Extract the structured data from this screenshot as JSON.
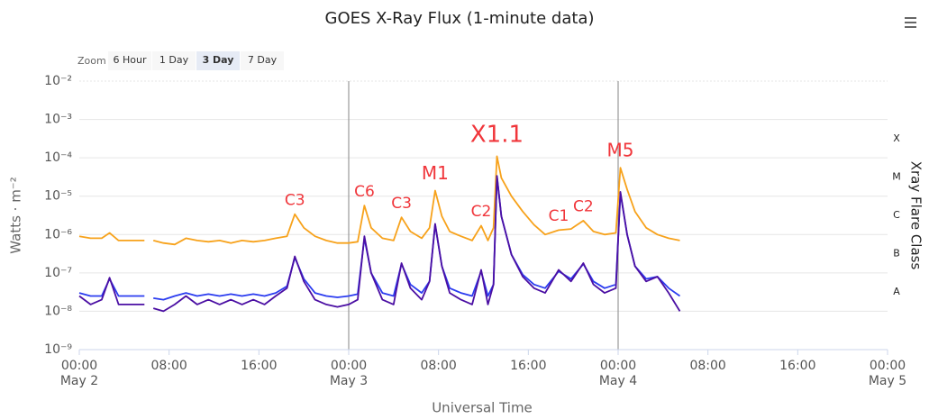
{
  "chart_data": {
    "type": "line",
    "title": "GOES X-Ray Flux (1-minute data)",
    "x_label": "Universal Time",
    "y_label": "Watts · m⁻²",
    "y2_label": "Xray Flare Class",
    "log_y": true,
    "grid": true,
    "range_selector": {
      "label": "Zoom",
      "buttons": [
        "6 Hour",
        "1 Day",
        "3 Day",
        "7 Day"
      ],
      "selected": 2
    },
    "xlim": [
      0,
      72
    ],
    "xticks": [
      {
        "value": 0,
        "label": "00:00",
        "date": "May 2"
      },
      {
        "value": 8,
        "label": "08:00"
      },
      {
        "value": 16,
        "label": "16:00"
      },
      {
        "value": 24,
        "label": "00:00",
        "date": "May 3"
      },
      {
        "value": 32,
        "label": "08:00"
      },
      {
        "value": 40,
        "label": "16:00"
      },
      {
        "value": 48,
        "label": "00:00",
        "date": "May 4"
      },
      {
        "value": 56,
        "label": "08:00"
      },
      {
        "value": 64,
        "label": "16:00"
      },
      {
        "value": 72,
        "label": "00:00",
        "date": "May 5"
      }
    ],
    "ylim": [
      1e-09,
      0.01
    ],
    "yticks": [
      {
        "value": 1e-09,
        "label": "10⁻⁹"
      },
      {
        "value": 1e-08,
        "label": "10⁻⁸"
      },
      {
        "value": 1e-07,
        "label": "10⁻⁷"
      },
      {
        "value": 1e-06,
        "label": "10⁻⁶"
      },
      {
        "value": 1e-05,
        "label": "10⁻⁵"
      },
      {
        "value": 0.0001,
        "label": "10⁻⁴"
      },
      {
        "value": 0.001,
        "label": "10⁻³"
      },
      {
        "value": 0.01,
        "label": "10⁻²"
      }
    ],
    "y2lim": [
      1e-09,
      0.01
    ],
    "y2ticks": [
      {
        "value": 3.16e-08,
        "label": "A"
      },
      {
        "value": 3.16e-07,
        "label": "B"
      },
      {
        "value": 3.16e-06,
        "label": "C"
      },
      {
        "value": 3.16e-05,
        "label": "M"
      },
      {
        "value": 0.000316,
        "label": "X"
      }
    ],
    "x": [
      0,
      1,
      2,
      2.7,
      3.5,
      4.5,
      5.8,
      6.2,
      6.6,
      7.5,
      8.5,
      9.5,
      10.5,
      11.5,
      12.5,
      13.5,
      14.5,
      15.5,
      16.5,
      17.5,
      18.5,
      19.2,
      20,
      21,
      22,
      23,
      24,
      24.8,
      25.4,
      26,
      27,
      28,
      28.7,
      29.5,
      30.5,
      31.2,
      31.7,
      32.3,
      33,
      34,
      35,
      35.8,
      36.4,
      36.9,
      37.2,
      37.6,
      38.5,
      39.5,
      40.5,
      41.5,
      42.7,
      43.8,
      44.9,
      45.8,
      46.8,
      47.8,
      48.2,
      48.8,
      49.5,
      50.5,
      51.5,
      52.5,
      53.5
    ],
    "series": [
      {
        "color": "#f7a21b",
        "values": [
          9e-07,
          8e-07,
          8e-07,
          1.1e-06,
          7e-07,
          7e-07,
          7e-07,
          null,
          7e-07,
          6e-07,
          5.5e-07,
          8e-07,
          7e-07,
          6.5e-07,
          7e-07,
          6e-07,
          7e-07,
          6.5e-07,
          7e-07,
          8e-07,
          9e-07,
          3.4e-06,
          1.5e-06,
          9e-07,
          7e-07,
          6e-07,
          6e-07,
          6.5e-07,
          5.7e-06,
          1.5e-06,
          8e-07,
          7e-07,
          2.8e-06,
          1.2e-06,
          8e-07,
          1.5e-06,
          1.4e-05,
          3e-06,
          1.2e-06,
          9e-07,
          7e-07,
          1.7e-06,
          7e-07,
          1.5e-06,
          0.00011,
          3e-05,
          1e-05,
          4e-06,
          1.8e-06,
          1e-06,
          1.3e-06,
          1.4e-06,
          2.3e-06,
          1.2e-06,
          1e-06,
          1.1e-06,
          5.5e-05,
          1.5e-05,
          4e-06,
          1.5e-06,
          1e-06,
          8e-07,
          7e-07
        ]
      },
      {
        "color": "#2b3cf0",
        "values": [
          3e-08,
          2.5e-08,
          2.5e-08,
          7e-08,
          2.5e-08,
          2.5e-08,
          2.5e-08,
          null,
          2.2e-08,
          2e-08,
          2.5e-08,
          3e-08,
          2.5e-08,
          2.8e-08,
          2.5e-08,
          2.8e-08,
          2.5e-08,
          2.8e-08,
          2.5e-08,
          3e-08,
          4.5e-08,
          2.5e-07,
          7e-08,
          3e-08,
          2.5e-08,
          2.3e-08,
          2.5e-08,
          2.8e-08,
          8e-07,
          1e-07,
          3e-08,
          2.5e-08,
          1.7e-07,
          5e-08,
          3e-08,
          6e-08,
          1.8e-06,
          1.5e-07,
          4e-08,
          3e-08,
          2.5e-08,
          1.1e-07,
          2.5e-08,
          5e-08,
          3.3e-05,
          3e-06,
          3e-07,
          9e-08,
          5e-08,
          4e-08,
          1.1e-07,
          7e-08,
          1.7e-07,
          6e-08,
          4e-08,
          5e-08,
          1.2e-05,
          1e-06,
          1.5e-07,
          7e-08,
          8e-08,
          4e-08,
          2.5e-08
        ]
      },
      {
        "color": "#4b0fa3",
        "values": [
          2.5e-08,
          1.5e-08,
          2e-08,
          7.5e-08,
          1.5e-08,
          1.5e-08,
          1.5e-08,
          null,
          1.2e-08,
          1e-08,
          1.5e-08,
          2.5e-08,
          1.5e-08,
          2e-08,
          1.5e-08,
          2e-08,
          1.5e-08,
          2e-08,
          1.5e-08,
          2.5e-08,
          4e-08,
          2.7e-07,
          6e-08,
          2e-08,
          1.5e-08,
          1.3e-08,
          1.5e-08,
          2e-08,
          9e-07,
          1e-07,
          2e-08,
          1.5e-08,
          1.8e-07,
          4e-08,
          2e-08,
          6e-08,
          1.9e-06,
          1.5e-07,
          3e-08,
          2e-08,
          1.5e-08,
          1.2e-07,
          1.5e-08,
          5e-08,
          3.4e-05,
          3e-06,
          3e-07,
          8e-08,
          4e-08,
          3e-08,
          1.2e-07,
          6e-08,
          1.8e-07,
          5e-08,
          3e-08,
          4e-08,
          1.3e-05,
          1e-06,
          1.5e-07,
          6e-08,
          8e-08,
          3e-08,
          1e-08
        ]
      }
    ],
    "annotations": [
      {
        "text": "C3",
        "x": 19.2
      },
      {
        "text": "C6",
        "x": 25.4
      },
      {
        "text": "C3",
        "x": 28.7
      },
      {
        "text": "M1",
        "x": 31.7
      },
      {
        "text": "C2",
        "x": 35.8
      },
      {
        "text": "X1.1",
        "x": 37.2
      },
      {
        "text": "C1",
        "x": 42.7
      },
      {
        "text": "C2",
        "x": 44.9
      },
      {
        "text": "M5",
        "x": 48.2
      }
    ]
  }
}
